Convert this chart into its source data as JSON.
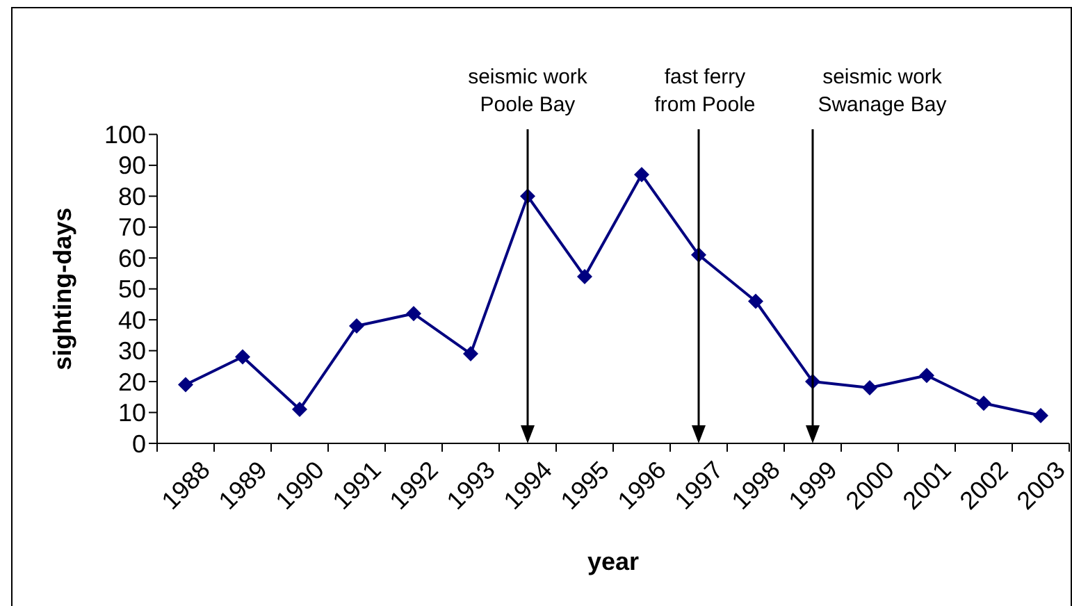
{
  "chart_data": {
    "type": "line",
    "xlabel": "year",
    "ylabel": "sighting-days",
    "categories": [
      "1988",
      "1989",
      "1990",
      "1991",
      "1992",
      "1993",
      "1994",
      "1995",
      "1996",
      "1997",
      "1998",
      "1999",
      "2000",
      "2001",
      "2002",
      "2003"
    ],
    "ylim": [
      0,
      100
    ],
    "yticks": [
      0,
      10,
      20,
      30,
      40,
      50,
      60,
      70,
      80,
      90,
      100
    ],
    "series": [
      {
        "color": "#000080",
        "values": [
          19,
          28,
          11,
          38,
          42,
          29,
          80,
          54,
          87,
          61,
          46,
          20,
          18,
          22,
          13,
          9
        ]
      }
    ],
    "marker": "diamond",
    "ref_lines": [
      {
        "axis": "x",
        "value": "1994",
        "label": "seismic work\nPoole Bay",
        "color": "#000000"
      },
      {
        "axis": "x",
        "value": "1997",
        "label": "fast ferry\nfrom Poole",
        "color": "#000000"
      },
      {
        "axis": "x",
        "value": "1999",
        "label": "seismic work\nSwanage Bay",
        "color": "#000000"
      }
    ]
  }
}
